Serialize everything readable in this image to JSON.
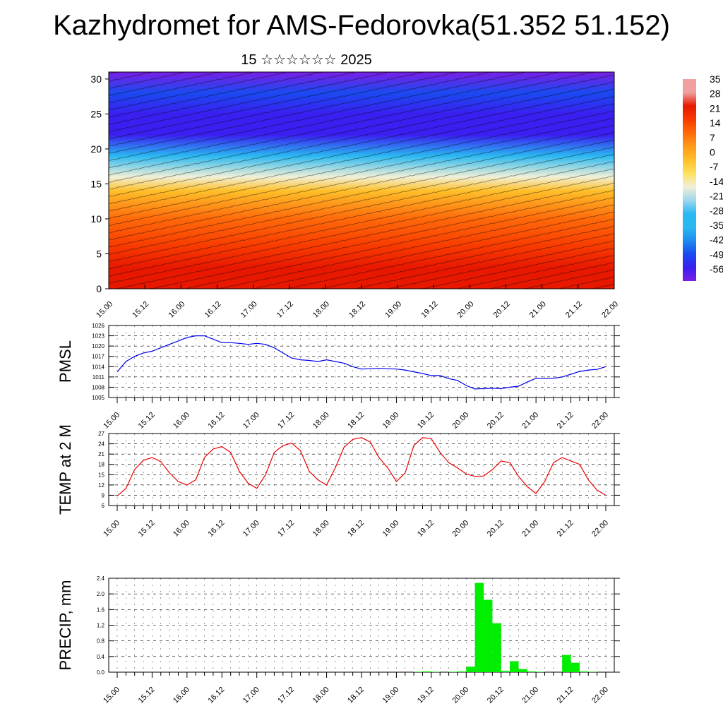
{
  "title": "Kazhydromet for AMS-Fedorovka(51.352 51.152)",
  "subtitle": "15 ☆☆☆☆☆☆ 2025",
  "time_ticks": [
    "15.00",
    "15.12",
    "16.00",
    "16.12",
    "17.00",
    "17.12",
    "18.00",
    "18.12",
    "19.00",
    "19.12",
    "20.00",
    "20.12",
    "21.00",
    "21.12",
    "22.00"
  ],
  "colorbar": {
    "labels": [
      "35",
      "28",
      "21",
      "14",
      "7",
      "0",
      "-7",
      "-14",
      "-21",
      "-28",
      "-35",
      "-42",
      "-49",
      "-56"
    ],
    "colors": [
      "#6e1fe0",
      "#2a2af0",
      "#1e64f0",
      "#1fa3f0",
      "#5cc6f2",
      "#a8dcf0",
      "#ffe97a",
      "#ffc43a",
      "#ff9f1f",
      "#ff7a10",
      "#ff5000",
      "#f02800",
      "#dc1400",
      "#f0a0a0"
    ]
  },
  "chart_data": [
    {
      "type": "heatmap",
      "title": "",
      "xlabel": "",
      "ylabel": "",
      "x_ticks": [
        "15.00",
        "15.12",
        "16.00",
        "16.12",
        "17.00",
        "17.12",
        "18.00",
        "18.12",
        "19.00",
        "19.12",
        "20.00",
        "20.12",
        "21.00",
        "21.12",
        "22.00"
      ],
      "y_ticks": [
        0,
        5,
        10,
        15,
        20,
        25,
        30
      ],
      "ylim": [
        0,
        31
      ],
      "colorbar_range": [
        -56,
        35
      ],
      "levels_y": [
        0,
        3,
        6,
        10,
        14,
        16,
        19,
        22,
        25,
        28,
        31
      ],
      "level_values": [
        26,
        24,
        20,
        10,
        0,
        -18,
        -35,
        -52,
        -56,
        -50,
        -60
      ]
    },
    {
      "type": "line",
      "ylabel": "PMSL",
      "ylim": [
        1005,
        1026
      ],
      "y_ticks": [
        1005,
        1008,
        1011,
        1014,
        1017,
        1020,
        1023,
        1026
      ],
      "x_hours": [
        0,
        3,
        6,
        9,
        12,
        15,
        18,
        21,
        24,
        27,
        30,
        33,
        36,
        39,
        42,
        45,
        48,
        51,
        54,
        57,
        60,
        63,
        66,
        69,
        72,
        75,
        78,
        81,
        84,
        87,
        90,
        93,
        96,
        99,
        102,
        105,
        108,
        111,
        114,
        117,
        120,
        123,
        126,
        129,
        132,
        135,
        138,
        141,
        144,
        147,
        150,
        153,
        156,
        159,
        162,
        165,
        168
      ],
      "series": [
        {
          "color": "#0000ee",
          "values": [
            1012.5,
            1015.5,
            1017,
            1018,
            1018.5,
            1019.5,
            1020.5,
            1021.5,
            1022.5,
            1023,
            1023,
            1022,
            1021,
            1021,
            1020.8,
            1020.5,
            1020.8,
            1020.5,
            1019.5,
            1018,
            1016.5,
            1016,
            1015.8,
            1015.5,
            1016,
            1015.5,
            1015,
            1014,
            1013.3,
            1013.4,
            1013.5,
            1013.4,
            1013.3,
            1013,
            1012.5,
            1012,
            1011.4,
            1011.4,
            1010.5,
            1010,
            1008.5,
            1007.5,
            1007.6,
            1007.7,
            1007.6,
            1008,
            1008.3,
            1009.5,
            1010.6,
            1010.5,
            1010.6,
            1011,
            1011.8,
            1012.6,
            1013,
            1013.2,
            1014
          ]
        }
      ]
    },
    {
      "type": "line",
      "ylabel": "TEMP at 2 M",
      "ylim": [
        6,
        27
      ],
      "y_ticks": [
        6,
        9,
        12,
        15,
        18,
        21,
        24,
        27
      ],
      "x_hours": [
        0,
        3,
        6,
        9,
        12,
        15,
        18,
        21,
        24,
        27,
        30,
        33,
        36,
        39,
        42,
        45,
        48,
        51,
        54,
        57,
        60,
        63,
        66,
        69,
        72,
        75,
        78,
        81,
        84,
        87,
        90,
        93,
        96,
        99,
        102,
        105,
        108,
        111,
        114,
        117,
        120,
        123,
        126,
        129,
        132,
        135,
        138,
        141,
        144,
        147,
        150,
        153,
        156,
        159,
        162,
        165,
        168
      ],
      "series": [
        {
          "color": "#ee0000",
          "values": [
            8.8,
            11,
            16.5,
            19.2,
            20,
            18.8,
            15.5,
            13,
            12,
            13.5,
            20,
            22.5,
            23.2,
            21.5,
            16,
            12.5,
            11,
            15,
            21.5,
            23.5,
            24.2,
            22,
            16,
            13.5,
            12,
            17,
            23,
            25.3,
            25.8,
            24.5,
            20,
            17,
            13,
            15.5,
            23.5,
            25.8,
            25.5,
            21.5,
            18.5,
            17,
            15.2,
            14.5,
            14.6,
            16.5,
            19,
            18.5,
            14.5,
            11.5,
            9.5,
            13,
            18.5,
            20,
            19,
            18,
            13.5,
            10.5,
            9
          ]
        }
      ]
    },
    {
      "type": "bar",
      "ylabel": "PRECIP, mm",
      "ylim": [
        0,
        2.4
      ],
      "y_ticks": [
        "0.0",
        "0.4",
        "0.8",
        "1.2",
        "1.6",
        "2.0",
        "2.4"
      ],
      "x_hours": [
        0,
        3,
        6,
        9,
        12,
        15,
        18,
        21,
        24,
        27,
        30,
        33,
        36,
        39,
        42,
        45,
        48,
        51,
        54,
        57,
        60,
        63,
        66,
        69,
        72,
        75,
        78,
        81,
        84,
        87,
        90,
        93,
        96,
        99,
        102,
        105,
        108,
        111,
        114,
        117,
        120,
        123,
        126,
        129,
        132,
        135,
        138,
        141,
        144,
        147,
        150,
        153,
        156,
        159,
        162,
        165
      ],
      "series": [
        {
          "color": "#00ee00",
          "values": [
            0,
            0,
            0,
            0,
            0,
            0,
            0,
            0,
            0,
            0,
            0,
            0,
            0,
            0,
            0,
            0,
            0,
            0,
            0,
            0,
            0,
            0,
            0,
            0,
            0,
            0,
            0,
            0,
            0,
            0,
            0,
            0,
            0,
            0,
            0.01,
            0.02,
            0.01,
            0,
            0.01,
            0.02,
            0.14,
            2.28,
            1.85,
            1.25,
            0.03,
            0.28,
            0.08,
            0.02,
            0.01,
            0,
            0,
            0.44,
            0.24,
            0.02,
            0.01,
            0
          ]
        }
      ]
    }
  ]
}
